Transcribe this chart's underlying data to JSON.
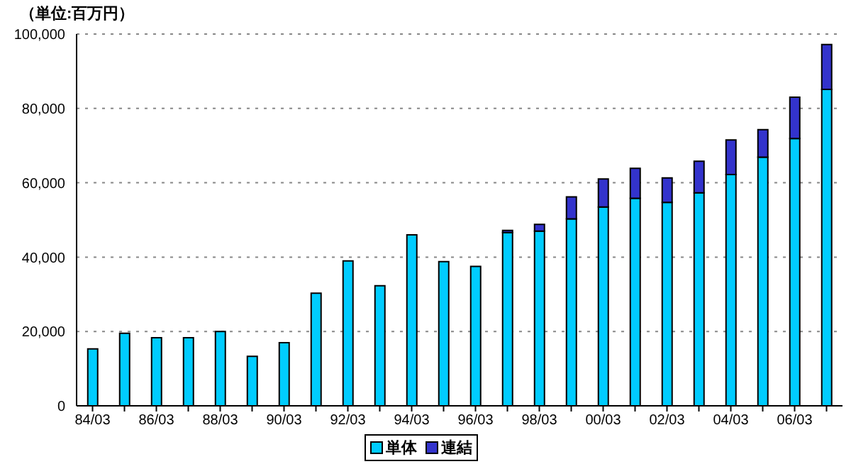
{
  "chart_data": {
    "type": "bar",
    "ylabel": "（単位:百万円）",
    "stacked": true,
    "categories": [
      "84/03",
      null,
      "86/03",
      null,
      "88/03",
      null,
      "90/03",
      null,
      "92/03",
      null,
      "94/03",
      null,
      "96/03",
      null,
      "98/03",
      null,
      "00/03",
      null,
      "02/03",
      null,
      "04/03",
      null,
      "06/03",
      null
    ],
    "series": [
      {
        "name": "単体",
        "color": "#00ccff",
        "values": [
          15300,
          19500,
          18300,
          18300,
          20000,
          13300,
          17000,
          30300,
          39000,
          32300,
          46000,
          38800,
          37500,
          46600,
          47000,
          50300,
          53500,
          55800,
          54700,
          57300,
          62200,
          66900,
          71900,
          85100
        ]
      },
      {
        "name": "連結",
        "color": "#3333cc",
        "values": [
          null,
          null,
          null,
          null,
          null,
          null,
          null,
          null,
          null,
          null,
          null,
          null,
          null,
          600,
          1800,
          5900,
          7500,
          8100,
          6600,
          8500,
          9300,
          7400,
          11100,
          12100
        ]
      }
    ],
    "ylim": [
      0,
      100000
    ],
    "yticks": [
      0,
      {
        "value": 20000,
        "label": "20,000"
      },
      {
        "value": 40000,
        "label": "40,000"
      },
      {
        "value": 60000,
        "label": "60,000"
      },
      {
        "value": 80000,
        "label": "80,000"
      },
      {
        "value": 100000,
        "label": "100,000"
      }
    ],
    "grid": "y",
    "legend": "bottom"
  }
}
